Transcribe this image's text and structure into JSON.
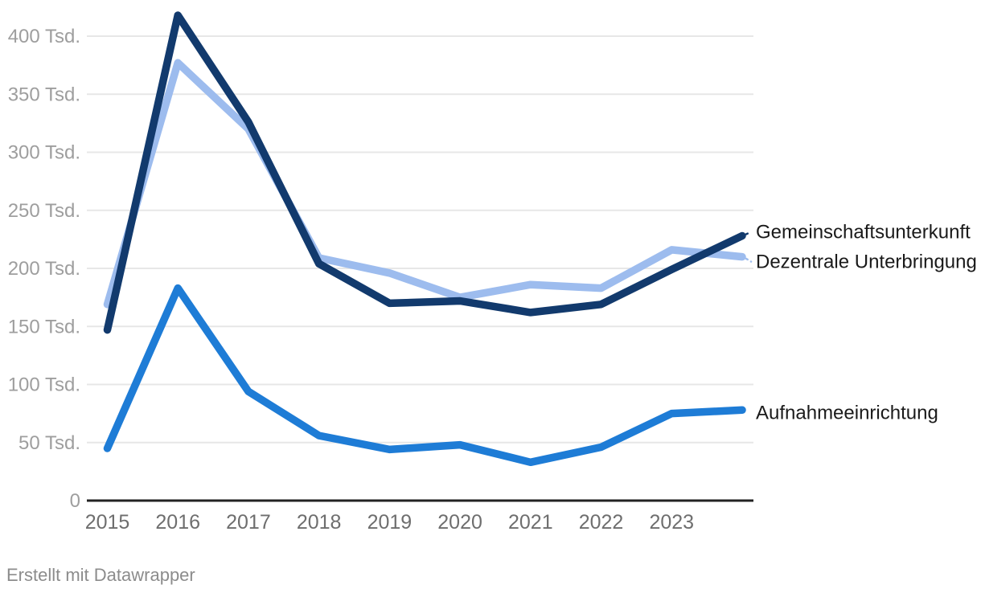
{
  "chart_data": {
    "type": "line",
    "x": [
      2015,
      2016,
      2017,
      2018,
      2019,
      2020,
      2021,
      2022,
      2023,
      2024
    ],
    "x_tick_labels": [
      "2015",
      "2016",
      "2017",
      "2018",
      "2019",
      "2020",
      "2021",
      "2022",
      "2023"
    ],
    "unit": "Tsd.",
    "y_ticks": [
      0,
      50,
      100,
      150,
      200,
      250,
      300,
      350,
      400
    ],
    "y_tick_suffix": " Tsd.",
    "ylim": [
      0,
      430
    ],
    "grid": "horizontal",
    "legend_position": "direct-labels-right",
    "series": [
      {
        "name": "Gemeinschaftsunterkunft",
        "color": "#123a6d",
        "values": [
          147,
          418,
          326,
          204,
          170,
          172,
          162,
          169,
          199,
          228
        ],
        "z": 3,
        "label_dy": -5,
        "end_connector": true
      },
      {
        "name": "Dezentrale Unterbringung",
        "color": "#9dbcee",
        "values": [
          169,
          377,
          320,
          209,
          196,
          175,
          186,
          183,
          216,
          210
        ],
        "z": 1,
        "label_dy": 6,
        "end_connector": true
      },
      {
        "name": "Aufnahmeeinrichtung",
        "color": "#1e7cd6",
        "values": [
          45,
          183,
          94,
          56,
          44,
          48,
          33,
          46,
          75,
          78
        ],
        "z": 2,
        "label_dy": 3,
        "end_connector": false
      }
    ]
  },
  "footer": {
    "attribution": "Erstellt mit Datawrapper"
  },
  "colors": {
    "background": "#ffffff",
    "gridline": "#e7e7e7",
    "axis": "#222222",
    "y_tick_text": "#9e9e9e",
    "x_tick_text": "#6e6e6e",
    "series_label_text": "#1a1a1a",
    "attribution_text": "#8c8c8c"
  }
}
